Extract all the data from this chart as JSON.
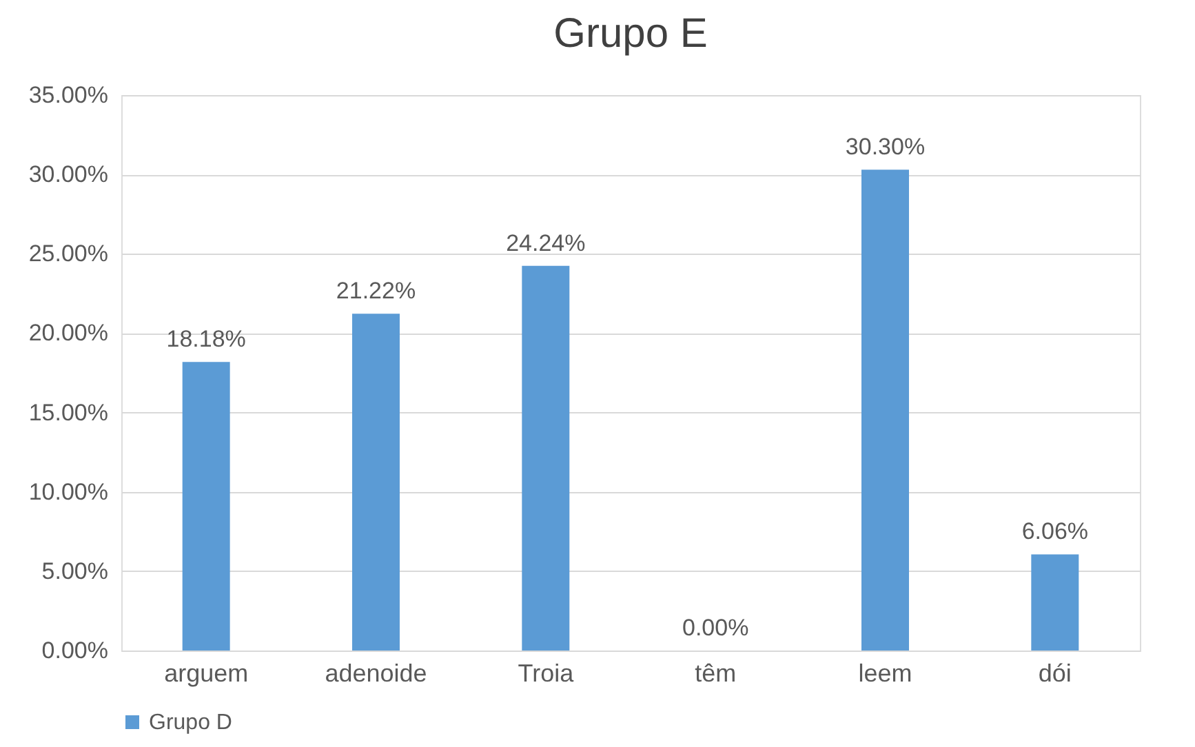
{
  "chart_data": {
    "type": "bar",
    "title": "Grupo E",
    "categories": [
      "arguem",
      "adenoide",
      "Troia",
      "têm",
      "leem",
      "dói"
    ],
    "series": [
      {
        "name": "Grupo D",
        "color": "#5b9bd5",
        "values": [
          18.18,
          21.22,
          24.24,
          0,
          30.3,
          6.06
        ],
        "value_labels": [
          "18.18%",
          "21.22%",
          "24.24%",
          "0.00%",
          "30.30%",
          "6.06%"
        ]
      }
    ],
    "ylim": [
      0,
      35
    ],
    "yticks": [
      {
        "value": 0,
        "label": "0.00%"
      },
      {
        "value": 5,
        "label": "5.00%"
      },
      {
        "value": 10,
        "label": "10.00%"
      },
      {
        "value": 15,
        "label": "15.00%"
      },
      {
        "value": 20,
        "label": "20.00%"
      },
      {
        "value": 25,
        "label": "25.00%"
      },
      {
        "value": 30,
        "label": "30.00%"
      },
      {
        "value": 35,
        "label": "35.00%"
      }
    ],
    "grid": "y",
    "legend": "bottom"
  }
}
